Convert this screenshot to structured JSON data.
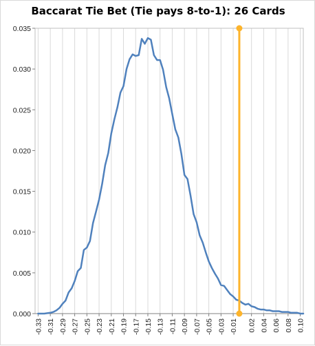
{
  "chart_data": {
    "type": "line",
    "title": "Baccarat Tie Bet (Tie pays 8-to-1): 26 Cards",
    "xlabel": "",
    "ylabel": "",
    "xlim": [
      -0.335,
      0.105
    ],
    "ylim": [
      0,
      0.035
    ],
    "y_ticks": [
      0.0,
      0.005,
      0.01,
      0.015,
      0.02,
      0.025,
      0.03,
      0.035
    ],
    "y_tick_labels": [
      "0.000",
      "0.005",
      "0.010",
      "0.015",
      "0.020",
      "0.025",
      "0.030",
      "0.035"
    ],
    "x_ticks": [
      -0.33,
      -0.31,
      -0.29,
      -0.27,
      -0.25,
      -0.23,
      -0.21,
      -0.19,
      -0.17,
      -0.15,
      -0.13,
      -0.11,
      -0.09,
      -0.07,
      -0.05,
      -0.03,
      -0.01,
      0.02,
      0.04,
      0.06,
      0.08,
      0.1
    ],
    "x_tick_labels": [
      "-0.33",
      "-0.31",
      "-0.29",
      "-0.27",
      "-0.25",
      "-0.23",
      "-0.21",
      "-0.19",
      "-0.17",
      "-0.15",
      "-0.13",
      "-0.11",
      "-0.09",
      "-0.07",
      "-0.05",
      "-0.03",
      "-0.01",
      "0.02",
      "0.04",
      "0.06",
      "0.08",
      "0.10"
    ],
    "grid": "vertical",
    "series": [
      {
        "color": "#4f81bd",
        "x": [
          -0.33,
          -0.32,
          -0.31,
          -0.305,
          -0.3,
          -0.295,
          -0.29,
          -0.285,
          -0.28,
          -0.275,
          -0.27,
          -0.265,
          -0.26,
          -0.255,
          -0.25,
          -0.245,
          -0.24,
          -0.235,
          -0.23,
          -0.225,
          -0.22,
          -0.215,
          -0.21,
          -0.205,
          -0.2,
          -0.195,
          -0.19,
          -0.185,
          -0.18,
          -0.175,
          -0.17,
          -0.165,
          -0.16,
          -0.155,
          -0.15,
          -0.145,
          -0.14,
          -0.135,
          -0.13,
          -0.125,
          -0.12,
          -0.115,
          -0.11,
          -0.105,
          -0.1,
          -0.095,
          -0.09,
          -0.085,
          -0.08,
          -0.075,
          -0.07,
          -0.065,
          -0.06,
          -0.055,
          -0.05,
          -0.045,
          -0.04,
          -0.035,
          -0.03,
          -0.025,
          -0.02,
          -0.015,
          -0.01,
          -0.005,
          0.0,
          0.005,
          0.01,
          0.015,
          0.02,
          0.025,
          0.03,
          0.035,
          0.04,
          0.045,
          0.05,
          0.055,
          0.06,
          0.065,
          0.07,
          0.075,
          0.08,
          0.085,
          0.09,
          0.095,
          0.1,
          0.105
        ],
        "values": [
          0.0,
          0.0,
          0.0001,
          0.0002,
          0.0004,
          0.0007,
          0.0012,
          0.0016,
          0.0026,
          0.0031,
          0.004,
          0.0052,
          0.0056,
          0.0078,
          0.0081,
          0.0089,
          0.0111,
          0.0125,
          0.014,
          0.0159,
          0.0182,
          0.0197,
          0.0221,
          0.0238,
          0.0253,
          0.0271,
          0.0279,
          0.03,
          0.0312,
          0.0318,
          0.0316,
          0.0317,
          0.0337,
          0.0331,
          0.0338,
          0.0336,
          0.0317,
          0.0311,
          0.0311,
          0.0299,
          0.0278,
          0.0264,
          0.0245,
          0.0226,
          0.0216,
          0.0196,
          0.017,
          0.0165,
          0.0145,
          0.0122,
          0.0112,
          0.0096,
          0.0087,
          0.0075,
          0.0064,
          0.0056,
          0.0049,
          0.0043,
          0.0035,
          0.0034,
          0.0029,
          0.0024,
          0.0021,
          0.0017,
          0.0016,
          0.0013,
          0.0011,
          0.0012,
          0.0009,
          0.0008,
          0.0006,
          0.0005,
          0.0005,
          0.0004,
          0.0004,
          0.0003,
          0.0003,
          0.0003,
          0.0002,
          0.0002,
          0.0002,
          0.0001,
          0.0001,
          0.0001,
          0.0,
          0.0
        ]
      },
      {
        "color": "#fdb42b",
        "x": [
          0.0,
          0.0
        ],
        "values": [
          0.0,
          0.035
        ]
      }
    ]
  }
}
